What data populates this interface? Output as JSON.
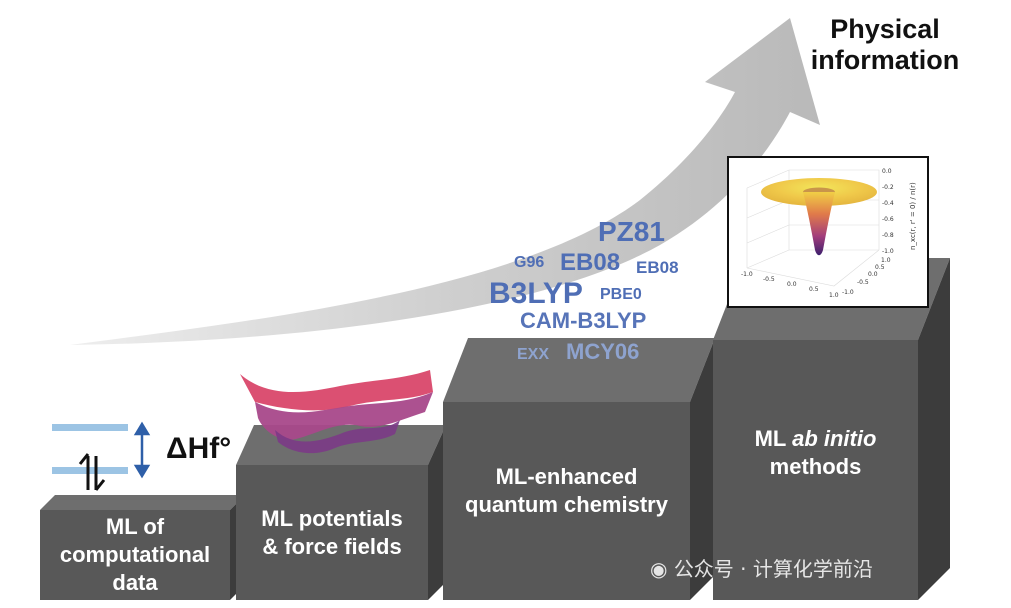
{
  "heading": {
    "line1": "Physical",
    "line2": "information"
  },
  "steps": [
    {
      "line1": "ML of",
      "line2": "computational",
      "line3": "data"
    },
    {
      "line1": "ML potentials",
      "line2": "& force fields"
    },
    {
      "line1": "ML-enhanced",
      "line2": "quantum chemistry"
    },
    {
      "line1": "ML",
      "line2_italic": "ab initio",
      "line3": "methods"
    }
  ],
  "energy_diagram": {
    "label": "ΔHf°"
  },
  "functionals": [
    {
      "text": "PZ81"
    },
    {
      "text": "G96"
    },
    {
      "text": "EB08"
    },
    {
      "text": "EB08"
    },
    {
      "text": "B3LYP"
    },
    {
      "text": "PBE0"
    },
    {
      "text": "CAM-B3LYP"
    },
    {
      "text": "EXX"
    },
    {
      "text": "MCY06"
    }
  ],
  "inset_plot": {
    "x_ticks": [
      "-1.0",
      "-0.5",
      "0.0",
      "0.5",
      "1.0"
    ],
    "y_ticks": [
      "1.0",
      "0.5",
      "0.0",
      "-0.5",
      "-1.0"
    ],
    "z_ticks": [
      "0.0",
      "-0.2",
      "-0.4",
      "-0.6",
      "-0.8",
      "-1.0"
    ],
    "z_label": "n_xc(r, r' = 0) / n(r)"
  },
  "watermark": "公众号 · 计算化学前沿",
  "colors": {
    "block_front": "#595959",
    "block_top": "#6c6c6c",
    "block_side": "#3f3f3f",
    "arrow": "#c8c8c8",
    "functional_dark": "#4f6eb5",
    "functional_light": "#8ea3cf",
    "level_line": "#9cc4e4",
    "dh_arrow": "#2e5fa8"
  }
}
